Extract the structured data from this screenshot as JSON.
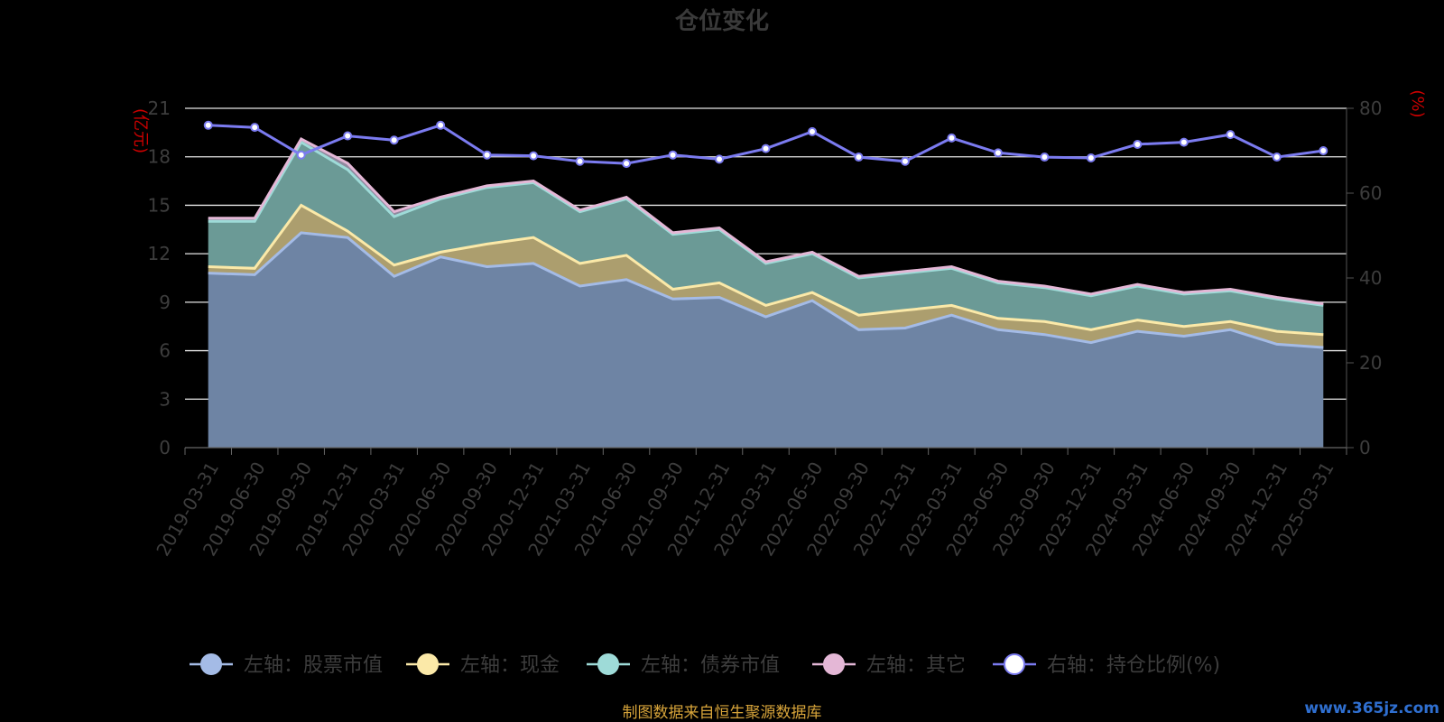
{
  "chart_data": {
    "type": "area",
    "title": "仓位变化",
    "left_axis_unit": "(亿元)",
    "right_axis_unit": "(%)",
    "x": [
      "2019-03-31",
      "2019-06-30",
      "2019-09-30",
      "2019-12-31",
      "2020-03-31",
      "2020-06-30",
      "2020-09-30",
      "2020-12-31",
      "2021-03-31",
      "2021-06-30",
      "2021-09-30",
      "2021-12-31",
      "2022-03-31",
      "2022-06-30",
      "2022-09-30",
      "2022-12-31",
      "2023-03-31",
      "2023-06-30",
      "2023-09-30",
      "2023-12-31",
      "2024-03-31",
      "2024-06-30",
      "2024-09-30",
      "2024-12-31",
      "2025-03-31"
    ],
    "left_ylim": [
      0,
      21
    ],
    "left_ticks": [
      0,
      3,
      6,
      9,
      12,
      15,
      18,
      21
    ],
    "right_ylim": [
      0,
      80
    ],
    "right_ticks": [
      0,
      20,
      40,
      60,
      80
    ],
    "grid": true,
    "legend_position": "bottom",
    "stacked_series": [
      {
        "name": "左轴：股票市值",
        "color": "#a4bbe6",
        "fill": "#6e84a4",
        "values": [
          10.8,
          10.7,
          13.3,
          13.0,
          10.6,
          11.8,
          11.2,
          11.4,
          10.0,
          10.4,
          9.2,
          9.3,
          8.1,
          9.1,
          7.3,
          7.4,
          8.2,
          7.3,
          7.0,
          6.5,
          7.2,
          6.9,
          7.3,
          6.4,
          6.2
        ]
      },
      {
        "name": "左轴：现金",
        "color": "#fbe9a8",
        "fill": "#ac9e6e",
        "values": [
          0.4,
          0.4,
          1.7,
          0.4,
          0.7,
          0.3,
          1.4,
          1.6,
          1.4,
          1.5,
          0.6,
          0.9,
          0.7,
          0.5,
          0.9,
          1.1,
          0.6,
          0.7,
          0.8,
          0.8,
          0.7,
          0.6,
          0.5,
          0.8,
          0.8
        ]
      },
      {
        "name": "左轴：债券市值",
        "color": "#9edbd8",
        "fill": "#6b9a96",
        "values": [
          2.8,
          2.9,
          3.9,
          3.8,
          3.0,
          3.3,
          3.5,
          3.4,
          3.2,
          3.5,
          3.4,
          3.3,
          2.6,
          2.4,
          2.3,
          2.3,
          2.3,
          2.2,
          2.1,
          2.1,
          2.1,
          2.0,
          1.9,
          2.0,
          1.8
        ]
      },
      {
        "name": "左轴：其它",
        "color": "#e4b7d6",
        "fill": "#8f8a9f",
        "values": [
          0.2,
          0.2,
          0.2,
          0.4,
          0.3,
          0.1,
          0.1,
          0.1,
          0.1,
          0.1,
          0.1,
          0.1,
          0.1,
          0.1,
          0.1,
          0.1,
          0.1,
          0.1,
          0.1,
          0.1,
          0.1,
          0.1,
          0.1,
          0.1,
          0.1
        ]
      }
    ],
    "line_series": {
      "name": "右轴：持仓比例(%)",
      "color": "#7b7bf0",
      "values": [
        76,
        75.5,
        69,
        73.5,
        72.5,
        76,
        69,
        68.8,
        67.5,
        67,
        69,
        68,
        70.5,
        74.5,
        68.5,
        67.5,
        73,
        69.5,
        68.5,
        68.3,
        71.5,
        72,
        73.8,
        68.5,
        70
      ]
    }
  },
  "source_note": "制图数据来自恒生聚源数据库",
  "watermark": "www.365jz.com"
}
